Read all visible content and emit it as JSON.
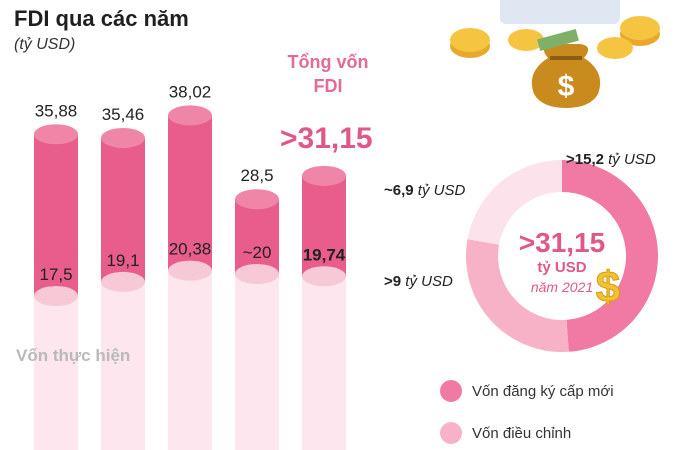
{
  "title": "FDI qua các năm",
  "unit": "(tỷ USD)",
  "colors": {
    "registered_dark": "#e85d8c",
    "registered_light": "#ef86a8",
    "realized_dark": "#f7c8d6",
    "realized_light": "#fde6ee",
    "donut_new": "#f07aa3",
    "donut_adjusted": "#f7b2c7",
    "donut_share": "#fce2ea"
  },
  "chart_data": [
    {
      "type": "bar",
      "categories": [
        "",
        "",
        "",
        "",
        ""
      ],
      "series": [
        {
          "name": "",
          "values": [
            35.88,
            35.46,
            38.02,
            28.5,
            31.15
          ]
        },
        {
          "name": "Vốn thực hiện",
          "values": [
            17.5,
            19.1,
            20.38,
            20,
            19.74
          ]
        }
      ],
      "labels_top": [
        "35,88",
        "35,46",
        "38,02",
        "28,5",
        ">31,15"
      ],
      "labels_bottom": [
        "17,5",
        "19,1",
        "20,38",
        "~20",
        "19,74"
      ],
      "callout": {
        "label_line1": "Tổng vốn",
        "label_line2": "FDI",
        "value": ">31,15"
      },
      "realized_label": "Vốn thực hiện"
    },
    {
      "type": "pie",
      "center": {
        "value": ">31,15",
        "unit": "tỷ USD",
        "year": "năm 2021"
      },
      "slices": [
        {
          "key": "new",
          "value": 15.2,
          "label_value": ">15,2",
          "label_unit": "tỷ USD",
          "color": "#f07aa3"
        },
        {
          "key": "adjusted",
          "value": 9,
          "label_value": ">9",
          "label_unit": "tỷ USD",
          "color": "#f7b2c7"
        },
        {
          "key": "share",
          "value": 6.9,
          "label_value": "~6,9",
          "label_unit": "tỷ USD",
          "color": "#fce2ea"
        }
      ],
      "legend": [
        {
          "label": "Vốn đăng ký cấp mới",
          "color": "#f07aa3"
        },
        {
          "label": "Vốn điều chỉnh",
          "color": "#f7b2c7"
        }
      ]
    }
  ],
  "icons": [
    "coin-stack-icon",
    "money-bag-icon",
    "dollar-sign-icon"
  ]
}
